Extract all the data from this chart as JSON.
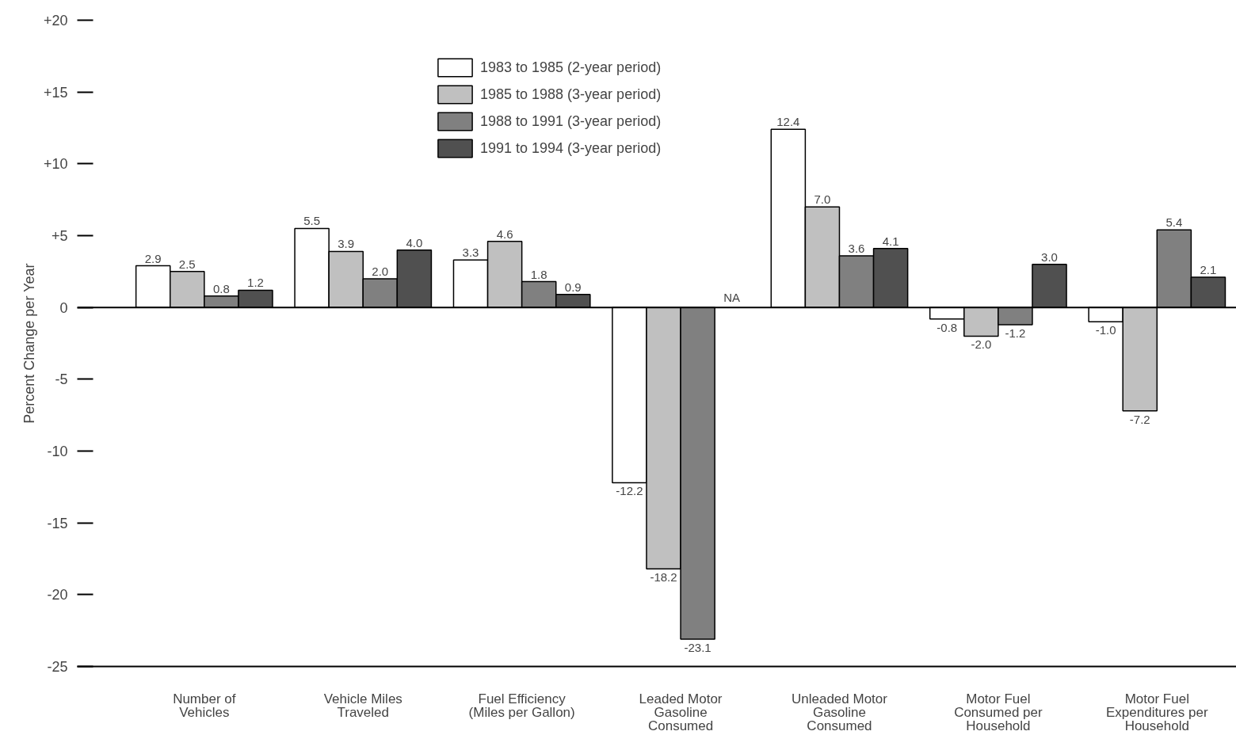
{
  "chart_data": {
    "type": "bar",
    "ylabel": "Percent Change per Year",
    "categories": [
      "Number of\nVehicles",
      "Vehicle Miles\nTraveled",
      "Fuel Efficiency\n(Miles per Gallon)",
      "Leaded Motor\nGasoline\nConsumed",
      "Unleaded Motor\nGasoline\nConsumed",
      "Motor Fuel\nConsumed per\nHousehold",
      "Motor Fuel\nExpenditures per\nHousehold"
    ],
    "series": [
      {
        "name": "1983 to 1985 (2-year period)",
        "color": "#ffffff",
        "values": [
          2.9,
          5.5,
          3.3,
          -12.2,
          12.4,
          -0.8,
          -1.0
        ],
        "value_labels": [
          "2.9",
          "5.5",
          "3.3",
          "-12.2",
          "12.4",
          "-0.8",
          "-1.0"
        ]
      },
      {
        "name": "1985 to 1988 (3-year period)",
        "color": "#c0c0c0",
        "values": [
          2.5,
          3.9,
          4.6,
          -18.2,
          7.0,
          -2.0,
          -7.2
        ],
        "value_labels": [
          "2.5",
          "3.9",
          "4.6",
          "-18.2",
          "7.0",
          "-2.0",
          "-7.2"
        ]
      },
      {
        "name": "1988 to 1991 (3-year period)",
        "color": "#808080",
        "values": [
          0.8,
          2.0,
          1.8,
          -23.1,
          3.6,
          -1.2,
          5.4
        ],
        "value_labels": [
          "0.8",
          "2.0",
          "1.8",
          "-23.1",
          "3.6",
          "-1.2",
          "5.4"
        ]
      },
      {
        "name": "1991 to 1994 (3-year period)",
        "color": "#505050",
        "values": [
          1.2,
          4.0,
          0.9,
          null,
          4.1,
          3.0,
          2.1
        ],
        "value_labels": [
          "1.2",
          "4.0",
          "0.9",
          null,
          "4.1",
          "3.0",
          "2.1"
        ]
      }
    ],
    "ylim": [
      -25,
      20
    ],
    "yticks": [
      {
        "value": 20,
        "label": "+20"
      },
      {
        "value": 15,
        "label": "+15"
      },
      {
        "value": 10,
        "label": "+10"
      },
      {
        "value": 5,
        "label": "+5"
      },
      0,
      -5,
      -10,
      -15,
      -20,
      -25
    ],
    "ref_lines": [
      {
        "axis": "y",
        "value": 0
      }
    ],
    "annotations": [
      "NA"
    ],
    "legend": "top",
    "grid": false
  }
}
